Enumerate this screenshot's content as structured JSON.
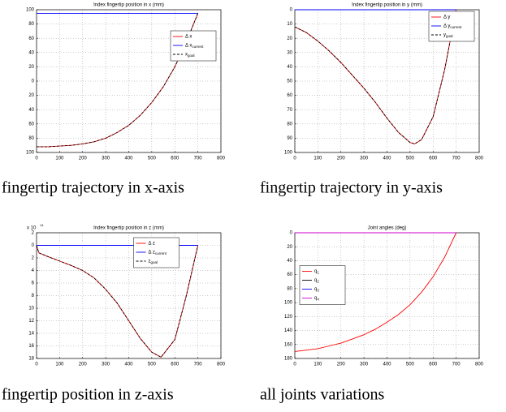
{
  "chart_data": [
    {
      "type": "line",
      "title": "Index fingertip position in x (mm)",
      "caption": "fingertip trajectory in x-axis",
      "x": [
        0,
        50,
        100,
        150,
        200,
        250,
        300,
        350,
        400,
        450,
        500,
        550,
        600,
        650,
        700
      ],
      "xlim": [
        0,
        800
      ],
      "xticks": [
        0,
        100,
        200,
        300,
        400,
        500,
        600,
        700,
        800
      ],
      "ylim": [
        -100,
        100
      ],
      "y_reversed": false,
      "yticks": [
        {
          "value": -100,
          "label": "100"
        },
        {
          "value": -80,
          "label": "80"
        },
        {
          "value": -60,
          "label": "60"
        },
        {
          "value": -40,
          "label": "40"
        },
        {
          "value": -20,
          "label": "20"
        },
        0,
        20,
        40,
        60,
        80,
        100
      ],
      "grid": true,
      "legend": "upper right",
      "series": [
        {
          "name": "Δ x",
          "color": "#ff0000",
          "dashed": false,
          "values": [
            -92,
            -92,
            -91,
            -90,
            -88,
            -85,
            -80,
            -72,
            -62,
            -48,
            -30,
            -8,
            20,
            55,
            95
          ]
        },
        {
          "name": "Δ x",
          "sub": "current",
          "color": "#0000ff",
          "dashed": false,
          "values": [
            95,
            95,
            95,
            95,
            95,
            95,
            95,
            95,
            95,
            95,
            95,
            95,
            95,
            95,
            95
          ]
        },
        {
          "name": "x",
          "sub": "goal",
          "color": "#000000",
          "dashed": true,
          "values": [
            -92,
            -92,
            -91,
            -90,
            -88,
            -85,
            -80,
            -72,
            -62,
            -48,
            -30,
            -8,
            20,
            55,
            95
          ]
        }
      ]
    },
    {
      "type": "line",
      "title": "Index fingertip position in y (mm)",
      "caption": "fingertip trajectory in y-axis",
      "x": [
        0,
        50,
        100,
        150,
        200,
        250,
        300,
        350,
        400,
        450,
        500,
        520,
        550,
        600,
        650,
        700
      ],
      "xlim": [
        0,
        800
      ],
      "xticks": [
        0,
        100,
        200,
        300,
        400,
        500,
        600,
        700,
        800
      ],
      "ylim": [
        0,
        100
      ],
      "y_reversed": true,
      "yticks": [
        0,
        10,
        20,
        30,
        40,
        50,
        60,
        70,
        80,
        90,
        100
      ],
      "grid": true,
      "legend": "upper right",
      "series": [
        {
          "name": "Δ y",
          "color": "#ff0000",
          "dashed": false,
          "values": [
            12,
            16,
            22,
            29,
            37,
            46,
            55,
            65,
            76,
            86,
            93,
            94,
            91,
            75,
            42,
            0
          ]
        },
        {
          "name": "Δ y",
          "sub": "current",
          "color": "#0000ff",
          "dashed": false,
          "values": [
            0,
            0,
            0,
            0,
            0,
            0,
            0,
            0,
            0,
            0,
            0,
            0,
            0,
            0,
            0,
            0
          ]
        },
        {
          "name": "y",
          "sub": "goal",
          "color": "#000000",
          "dashed": true,
          "values": [
            12,
            16,
            22,
            29,
            37,
            46,
            55,
            65,
            76,
            86,
            93,
            94,
            91,
            75,
            42,
            0
          ]
        }
      ]
    },
    {
      "type": "line",
      "title": "Index fingertip position in z (mm)",
      "caption": "fingertip position in z-axis",
      "multiplier": "x 10",
      "exponent": "14",
      "x": [
        0,
        10,
        50,
        100,
        150,
        200,
        250,
        300,
        350,
        400,
        450,
        500,
        540,
        600,
        650,
        700
      ],
      "xlim": [
        0,
        800
      ],
      "xticks": [
        0,
        100,
        200,
        300,
        400,
        500,
        600,
        700,
        800
      ],
      "ylim": [
        -18,
        2
      ],
      "y_reversed": false,
      "yticks": [
        2,
        0,
        {
          "value": -2,
          "label": "2"
        },
        {
          "value": -4,
          "label": "4"
        },
        {
          "value": -6,
          "label": "6"
        },
        {
          "value": -8,
          "label": "8"
        },
        {
          "value": -10,
          "label": "10"
        },
        {
          "value": -12,
          "label": "12"
        },
        {
          "value": -14,
          "label": "14"
        },
        {
          "value": -16,
          "label": "16"
        },
        {
          "value": -18,
          "label": "18"
        }
      ],
      "grid": true,
      "legend": "upper center",
      "series": [
        {
          "name": "Δ z",
          "color": "#ff0000",
          "dashed": false,
          "values": [
            0,
            -1.2,
            -1.8,
            -2.5,
            -3.2,
            -4,
            -5.2,
            -7,
            -9.2,
            -12,
            -14.8,
            -17,
            -17.8,
            -15,
            -8,
            0
          ]
        },
        {
          "name": "Δ z",
          "sub": "current",
          "color": "#0000ff",
          "dashed": false,
          "values": [
            0,
            0,
            0,
            0,
            0,
            0,
            0,
            0,
            0,
            0,
            0,
            0,
            0,
            0,
            0,
            0
          ]
        },
        {
          "name": "z",
          "sub": "goal",
          "color": "#000000",
          "dashed": true,
          "values": [
            0,
            -1.2,
            -1.8,
            -2.5,
            -3.2,
            -4,
            -5.2,
            -7,
            -9.2,
            -12,
            -14.8,
            -17,
            -17.8,
            -15,
            -8,
            0
          ]
        }
      ]
    },
    {
      "type": "line",
      "title": "Joint angles (deg)",
      "caption": "all joints variations",
      "x": [
        0,
        50,
        100,
        150,
        200,
        250,
        300,
        350,
        400,
        450,
        500,
        550,
        600,
        650,
        700
      ],
      "xlim": [
        0,
        800
      ],
      "xticks": [
        0,
        100,
        200,
        300,
        400,
        500,
        600,
        700,
        800
      ],
      "ylim": [
        0,
        180
      ],
      "y_reversed": true,
      "yticks": [
        0,
        20,
        40,
        60,
        80,
        100,
        120,
        140,
        160,
        180
      ],
      "grid": true,
      "legend": "center left",
      "series": [
        {
          "name": "q",
          "sub": "1",
          "color": "#ff0000",
          "dashed": false,
          "values": [
            170,
            168,
            166,
            162,
            158,
            152,
            146,
            138,
            128,
            117,
            103,
            85,
            63,
            35,
            0
          ]
        },
        {
          "name": "q",
          "sub": "2",
          "color": "#000000",
          "dashed": false,
          "values": [
            0,
            0,
            0,
            0,
            0,
            0,
            0,
            0,
            0,
            0,
            0,
            0,
            0,
            0,
            0
          ]
        },
        {
          "name": "q",
          "sub": "3",
          "color": "#0000ff",
          "dashed": false,
          "values": [
            0,
            0,
            0,
            0,
            0,
            0,
            0,
            0,
            0,
            0,
            0,
            0,
            0,
            0,
            0
          ]
        },
        {
          "name": "q",
          "sub": "4",
          "color": "#cc00cc",
          "dashed": false,
          "values": [
            0,
            0,
            0,
            0,
            0,
            0,
            0,
            0,
            0,
            0,
            0,
            0,
            0,
            0,
            0
          ]
        }
      ]
    }
  ]
}
